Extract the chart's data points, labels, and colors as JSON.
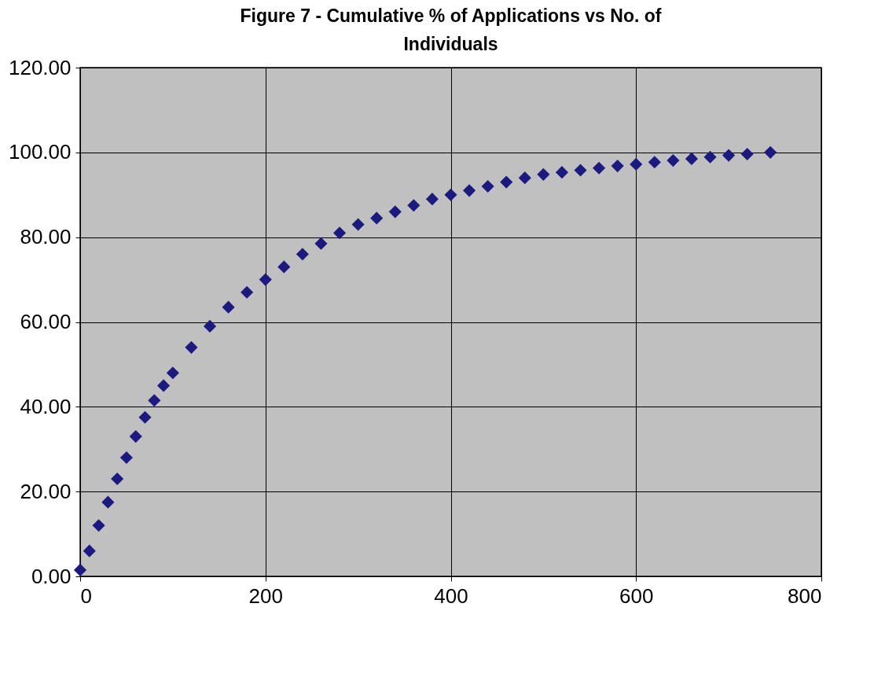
{
  "chart_data": {
    "type": "scatter",
    "title": "Figure 7 - Cumulative % of Applications vs No. of Individuals",
    "x": [
      0,
      10,
      20,
      30,
      40,
      50,
      60,
      70,
      80,
      90,
      100,
      120,
      140,
      160,
      180,
      200,
      220,
      240,
      260,
      280,
      300,
      320,
      340,
      360,
      380,
      400,
      420,
      440,
      460,
      480,
      500,
      520,
      540,
      560,
      580,
      600,
      620,
      640,
      660,
      680,
      700,
      720,
      745
    ],
    "series": [
      {
        "color": "#1a1a80",
        "values": [
          1.5,
          6,
          12,
          17.5,
          23,
          28,
          33,
          37.5,
          41.5,
          45,
          48,
          54,
          59,
          63.5,
          67,
          70,
          73,
          76,
          78.5,
          81,
          83,
          84.5,
          86,
          87.5,
          89,
          90,
          91,
          92,
          93,
          94,
          94.8,
          95.3,
          95.8,
          96.3,
          96.8,
          97.2,
          97.7,
          98.1,
          98.5,
          98.9,
          99.3,
          99.6,
          100
        ]
      }
    ],
    "xlim": [
      0,
      800
    ],
    "xticks": [
      0,
      200,
      400,
      600,
      800
    ],
    "ylim": [
      0,
      120
    ],
    "yticks": [
      {
        "value": 0,
        "label": "0.00"
      },
      {
        "value": 20,
        "label": "20.00"
      },
      {
        "value": 40,
        "label": "40.00"
      },
      {
        "value": 60,
        "label": "60.00"
      },
      {
        "value": 80,
        "label": "80.00"
      },
      {
        "value": 100,
        "label": "100.00"
      },
      {
        "value": 120,
        "label": "120.00"
      }
    ],
    "grid": true,
    "marker": "diamond"
  }
}
